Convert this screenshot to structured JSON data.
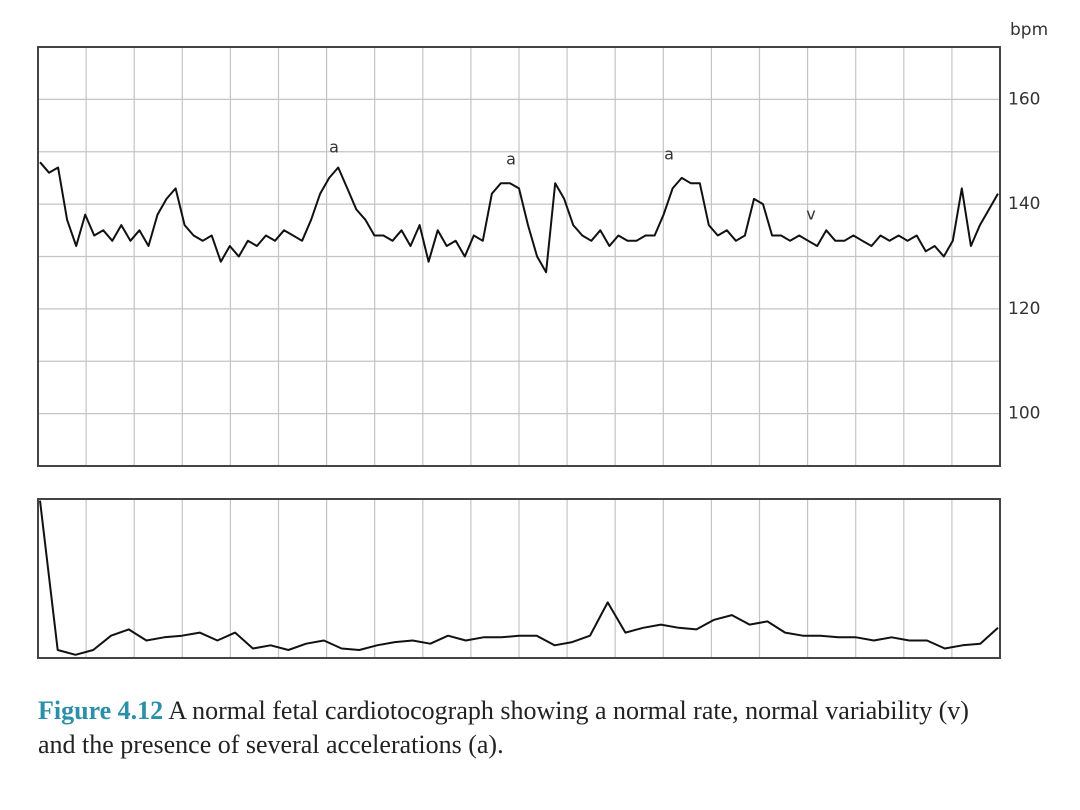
{
  "chart_data": [
    {
      "type": "line",
      "y_label": "bpm",
      "ylim": [
        90,
        170
      ],
      "yticks": [
        100,
        120,
        140,
        160
      ],
      "ygrid": [
        90,
        100,
        110,
        120,
        130,
        140,
        150,
        160,
        170
      ],
      "grid": true,
      "annotations": [
        "a",
        "a",
        "a",
        "v"
      ],
      "series": [
        {
          "color": "#111111",
          "values": [
            148,
            146,
            147,
            137,
            132,
            138,
            134,
            135,
            133,
            136,
            133,
            135,
            132,
            138,
            141,
            143,
            136,
            134,
            133,
            134,
            129,
            132,
            130,
            133,
            132,
            134,
            133,
            135,
            134,
            133,
            137,
            142,
            145,
            147,
            143,
            139,
            137,
            134,
            134,
            133,
            135,
            132,
            136,
            129,
            135,
            132,
            133,
            130,
            134,
            133,
            142,
            144,
            144,
            143,
            136,
            130,
            127,
            144,
            141,
            136,
            134,
            133,
            135,
            132,
            134,
            133,
            133,
            134,
            134,
            138,
            143,
            145,
            144,
            144,
            136,
            134,
            135,
            133,
            134,
            141,
            140,
            134,
            134,
            133,
            134,
            133,
            132,
            135,
            133,
            133,
            134,
            133,
            132,
            134,
            133,
            134,
            133,
            134,
            131,
            132,
            130,
            133,
            143,
            132,
            136,
            139,
            142
          ]
        }
      ]
    },
    {
      "type": "line",
      "ylim": [
        0,
        100
      ],
      "grid": true,
      "series": [
        {
          "color": "#111111",
          "values": [
            99,
            5,
            2,
            5,
            14,
            18,
            11,
            13,
            14,
            16,
            11,
            16,
            6,
            8,
            5,
            9,
            11,
            6,
            5,
            8,
            10,
            11,
            9,
            14,
            11,
            13,
            13,
            14,
            14,
            8,
            10,
            14,
            35,
            16,
            19,
            21,
            19,
            18,
            24,
            27,
            21,
            23,
            16,
            14,
            14,
            13,
            13,
            11,
            13,
            11,
            11,
            6,
            8,
            9,
            19
          ]
        }
      ]
    }
  ],
  "caption_label": "Figure 4.12",
  "caption": "A normal fetal cardiotocograph showing a normal rate, normal variability (v) and the presence of several accelerations (a)."
}
